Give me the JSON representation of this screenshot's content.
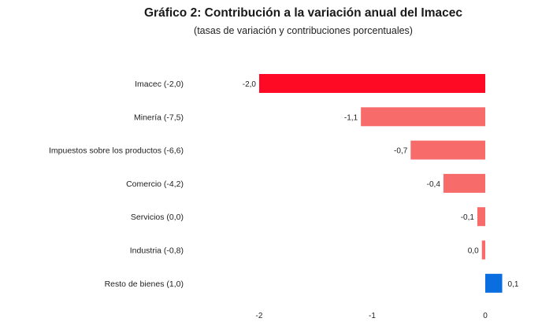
{
  "chart_data": {
    "type": "bar",
    "orientation": "horizontal",
    "title": "Gráfico 2: Contribución a la variación anual del Imacec",
    "subtitle": "(tasas de variación y contribuciones porcentuales)",
    "categories": [
      "Imacec (-2,0)",
      "Minería (-7,5)",
      "Impuestos sobre los productos (-6,6)",
      "Comercio (-4,2)",
      "Servicios (0,0)",
      "Industria (-0,8)",
      "Resto de bienes (1,0)"
    ],
    "values": [
      -2.0,
      -1.1,
      -0.66,
      -0.37,
      -0.07,
      -0.03,
      0.15
    ],
    "data_labels": [
      "-2,0",
      "-1,1",
      "-0,7",
      "-0,4",
      "-0,1",
      "0,0",
      "0,1"
    ],
    "xticks": [
      "-2",
      "-1",
      "0"
    ],
    "xtick_values": [
      -2,
      -1,
      0
    ],
    "xlim": [
      -2.0,
      0.15
    ],
    "grid": false,
    "legend": "none",
    "colors": {
      "total": "#ff0a24",
      "negative": "#f76b6b",
      "positive": "#0a6de0"
    }
  }
}
